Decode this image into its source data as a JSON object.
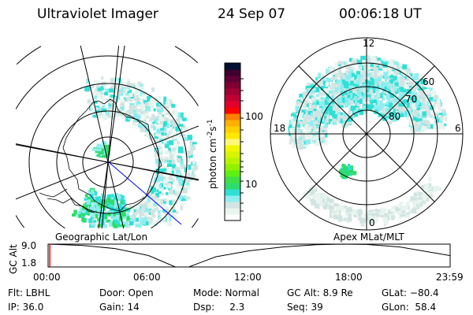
{
  "header": {
    "instrument": "Ultraviolet Imager",
    "date": "24 Sep 07",
    "time": "00:06:18 UT"
  },
  "left_map": {
    "label": "Geographic Lat/Lon"
  },
  "right_map": {
    "label": "Apex MLat/MLT",
    "mlt_labels": [
      "12",
      "18",
      "6",
      "0"
    ],
    "lat_labels": [
      "80",
      "70",
      "60"
    ]
  },
  "colorbar": {
    "unit_label": "photon cm",
    "unit_exp1": "-2",
    "unit_mid": "s",
    "unit_exp2": "-1",
    "ticks": [
      "100",
      "10"
    ],
    "colors": [
      "#ffffff",
      "#e8f4ee",
      "#d2e4e2",
      "#8eeef0",
      "#2ee0d6",
      "#2edc6a",
      "#3ee046",
      "#5ef012",
      "#90f000",
      "#b8f400",
      "#d8f400",
      "#f0f800",
      "#fff87a",
      "#ffe800",
      "#ffd000",
      "#ffb000",
      "#ff8000",
      "#ff0000",
      "#e0002c",
      "#c00034",
      "#a00034",
      "#800034",
      "#600034",
      "#400030",
      "#001030"
    ]
  },
  "chart_data": {
    "type": "line",
    "ylabel": "GC Alt",
    "yticks": [
      "9.0",
      "1.8"
    ],
    "ylim": [
      1.8,
      9.0
    ],
    "xticks": [
      "00:00",
      "06:00",
      "12:00",
      "18:00",
      "23:59"
    ],
    "x_hours": [
      0,
      2,
      4,
      6,
      7.6,
      8.4,
      10,
      12,
      14,
      16,
      17.5,
      19,
      21,
      23.98
    ],
    "values": [
      9.0,
      8.6,
      7.6,
      5.4,
      1.8,
      1.8,
      5.0,
      6.9,
      8.1,
      8.8,
      9.0,
      8.9,
      8.1,
      5.4
    ],
    "current_time_hours": 0.105,
    "current_marker_color": "#ff0000"
  },
  "status": {
    "flt": "Flt: LBHL",
    "door": "Door: Open",
    "mode": "Mode: Normal",
    "gcalt": "GC Alt: 8.9 Re",
    "glat": "GLat: −80.4",
    "ip": "IP: 36.0",
    "gain": "Gain: 14",
    "dsp": "Dsp:     2.3",
    "seq": "Seq: 39",
    "glon": "GLon:  58.4"
  }
}
